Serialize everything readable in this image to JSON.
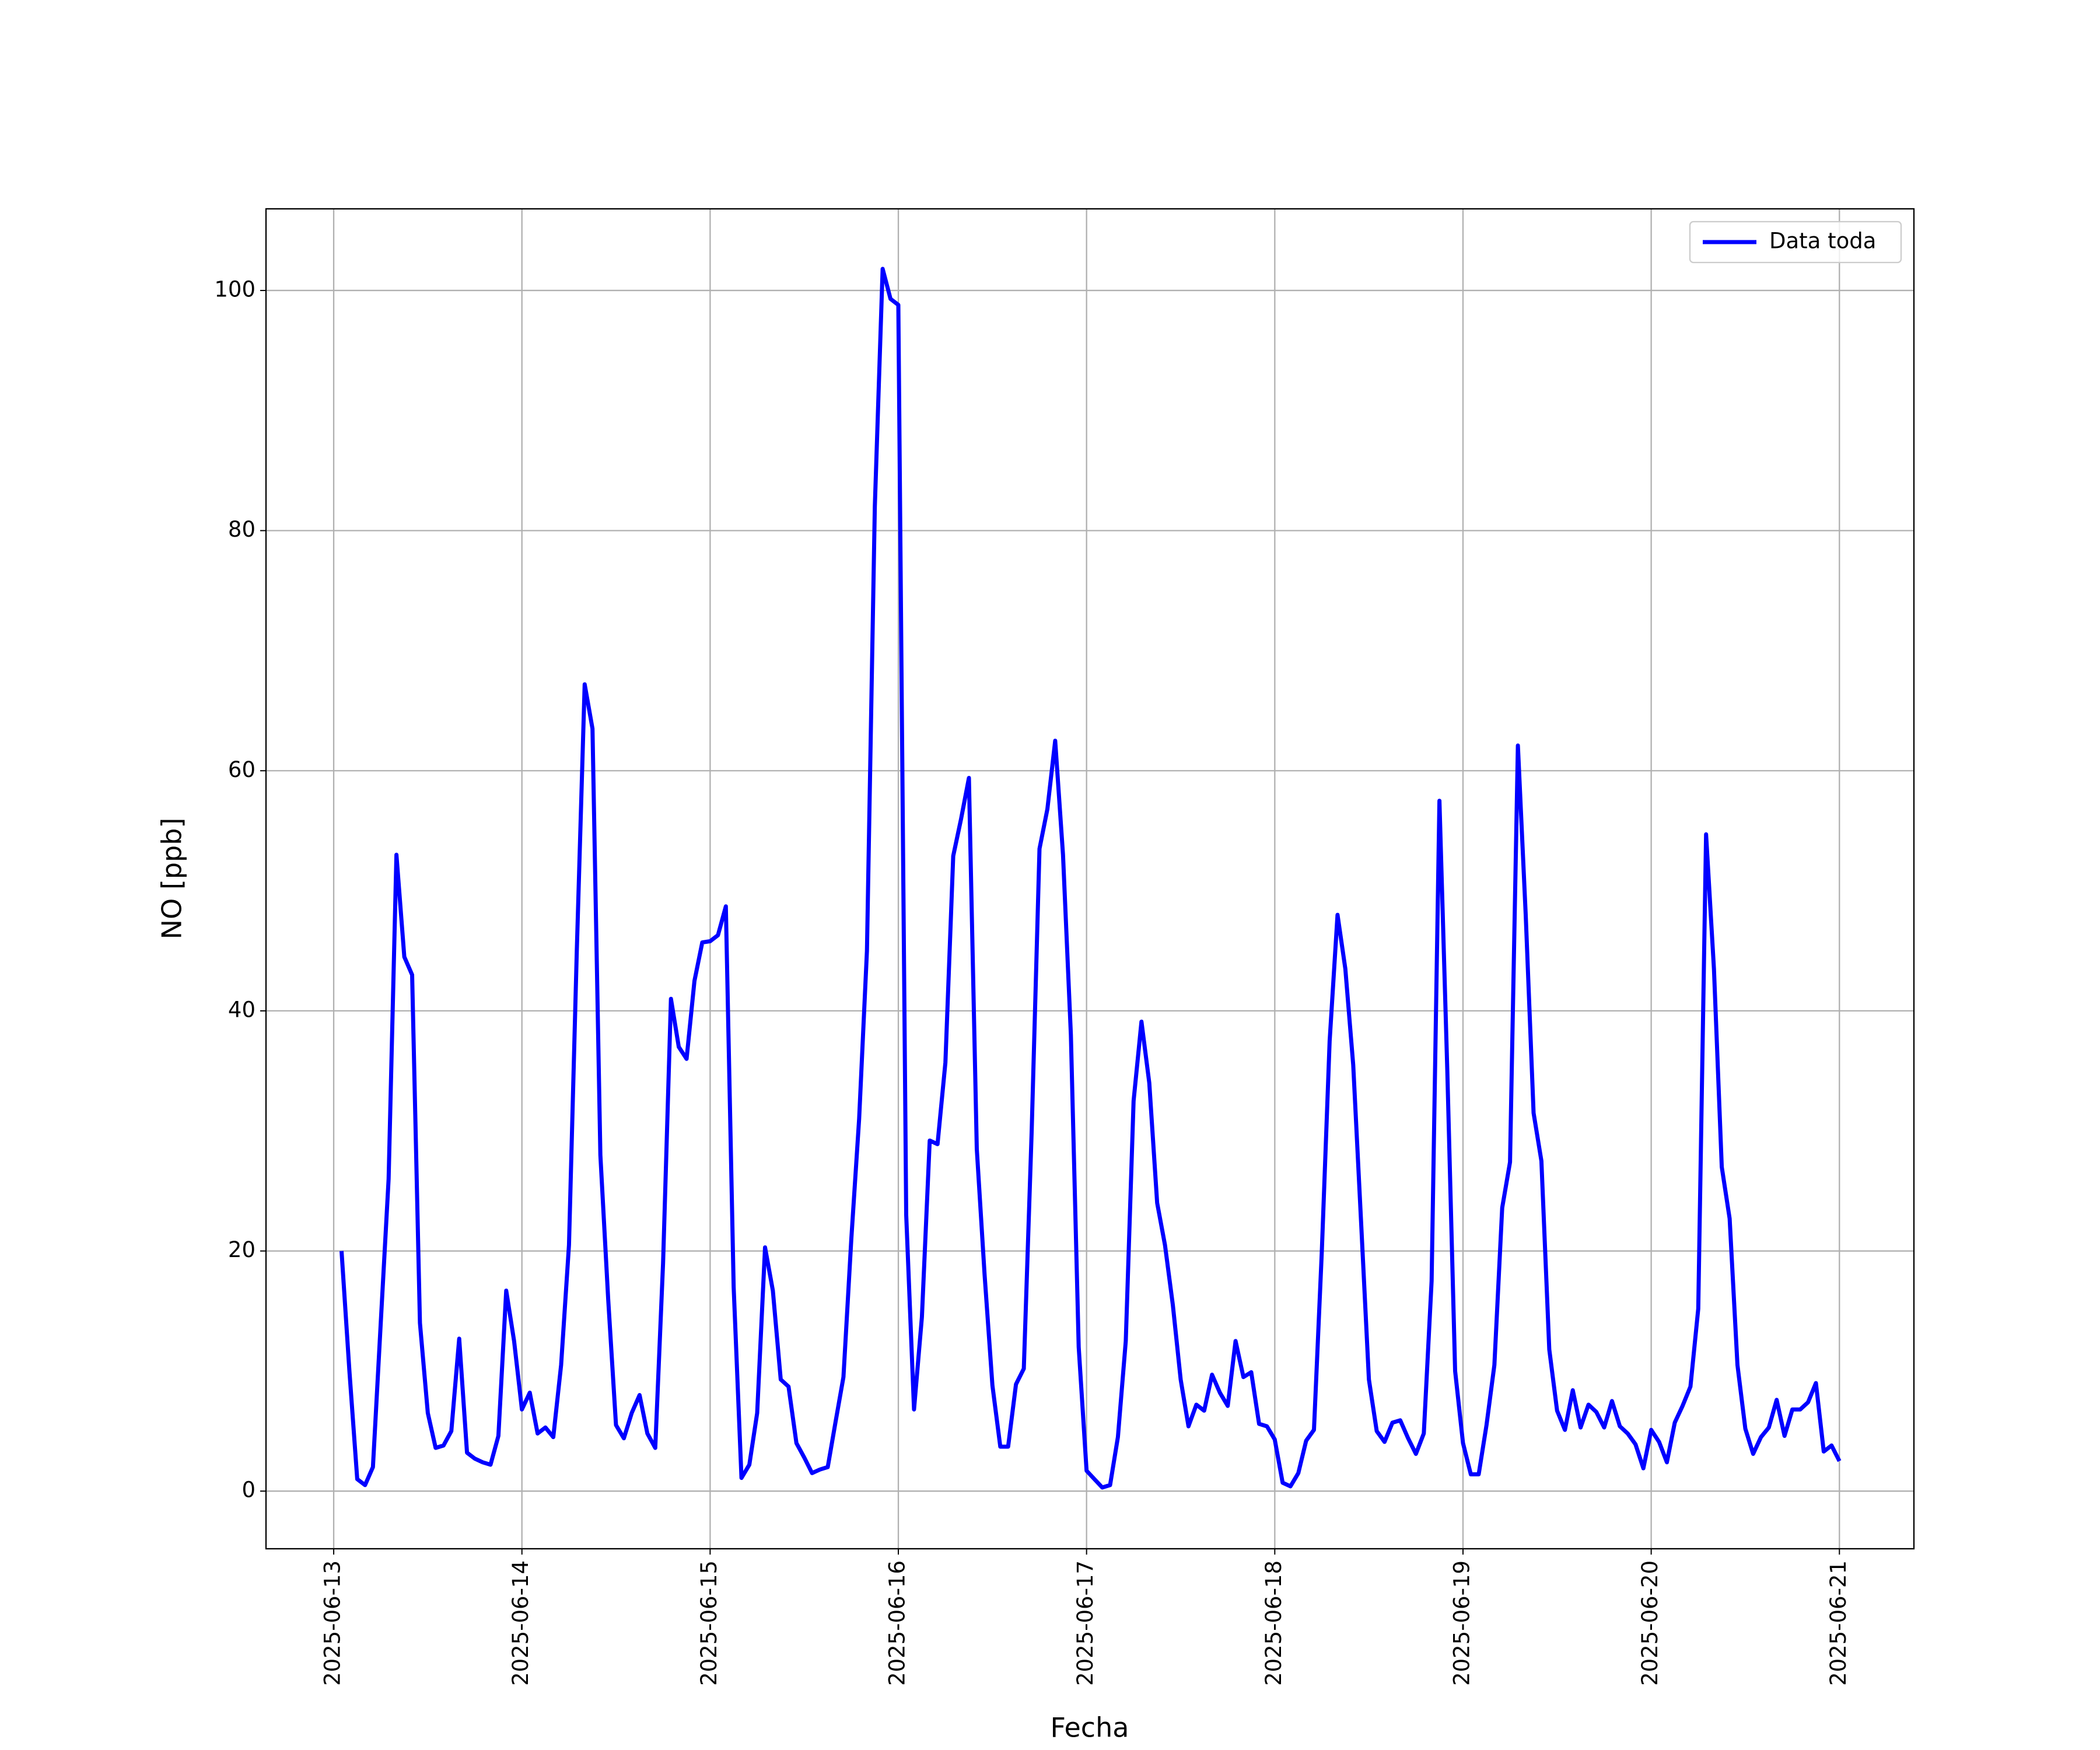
{
  "chart_data": {
    "type": "line",
    "xlabel": "Fecha",
    "ylabel": "NO [ppb]",
    "xlim": [
      "2025-06-12 15:22",
      "2025-06-21 09:30"
    ],
    "xticks": [
      "2025-06-13",
      "2025-06-14",
      "2025-06-15",
      "2025-06-16",
      "2025-06-17",
      "2025-06-18",
      "2025-06-19",
      "2025-06-20",
      "2025-06-21"
    ],
    "ylim": [
      -4.8,
      106.8
    ],
    "yticks": [
      0,
      20,
      40,
      60,
      80,
      100
    ],
    "grid": true,
    "legend": "upper right",
    "x": [
      "2025-06-13 01:00",
      "2025-06-13 02:00",
      "2025-06-13 03:00",
      "2025-06-13 04:00",
      "2025-06-13 05:00",
      "2025-06-13 06:00",
      "2025-06-13 07:00",
      "2025-06-13 08:00",
      "2025-06-13 09:00",
      "2025-06-13 10:00",
      "2025-06-13 11:00",
      "2025-06-13 12:00",
      "2025-06-13 13:00",
      "2025-06-13 14:00",
      "2025-06-13 15:00",
      "2025-06-13 16:00",
      "2025-06-13 17:00",
      "2025-06-13 18:00",
      "2025-06-13 19:00",
      "2025-06-13 20:00",
      "2025-06-13 21:00",
      "2025-06-13 22:00",
      "2025-06-13 23:00",
      "2025-06-14 00:00",
      "2025-06-14 01:00",
      "2025-06-14 02:00",
      "2025-06-14 03:00",
      "2025-06-14 04:00",
      "2025-06-14 05:00",
      "2025-06-14 06:00",
      "2025-06-14 07:00",
      "2025-06-14 08:00",
      "2025-06-14 09:00",
      "2025-06-14 10:00",
      "2025-06-14 11:00",
      "2025-06-14 12:00",
      "2025-06-14 13:00",
      "2025-06-14 14:00",
      "2025-06-14 15:00",
      "2025-06-14 16:00",
      "2025-06-14 17:00",
      "2025-06-14 18:00",
      "2025-06-14 19:00",
      "2025-06-14 20:00",
      "2025-06-14 21:00",
      "2025-06-14 22:00",
      "2025-06-14 23:00",
      "2025-06-15 00:00",
      "2025-06-15 01:00",
      "2025-06-15 02:00",
      "2025-06-15 03:00",
      "2025-06-15 04:00",
      "2025-06-15 05:00",
      "2025-06-15 06:00",
      "2025-06-15 07:00",
      "2025-06-15 08:00",
      "2025-06-15 09:00",
      "2025-06-15 10:00",
      "2025-06-15 11:00",
      "2025-06-15 12:00",
      "2025-06-15 13:00",
      "2025-06-15 14:00",
      "2025-06-15 15:00",
      "2025-06-15 16:00",
      "2025-06-15 17:00",
      "2025-06-15 18:00",
      "2025-06-15 19:00",
      "2025-06-15 20:00",
      "2025-06-15 21:00",
      "2025-06-15 22:00",
      "2025-06-15 23:00",
      "2025-06-16 00:00",
      "2025-06-16 01:00",
      "2025-06-16 02:00",
      "2025-06-16 03:00",
      "2025-06-16 04:00",
      "2025-06-16 05:00",
      "2025-06-16 06:00",
      "2025-06-16 07:00",
      "2025-06-16 08:00",
      "2025-06-16 09:00",
      "2025-06-16 10:00",
      "2025-06-16 11:00",
      "2025-06-16 12:00",
      "2025-06-16 13:00",
      "2025-06-16 14:00",
      "2025-06-16 15:00",
      "2025-06-16 16:00",
      "2025-06-16 17:00",
      "2025-06-16 18:00",
      "2025-06-16 19:00",
      "2025-06-16 20:00",
      "2025-06-16 21:00",
      "2025-06-16 22:00",
      "2025-06-16 23:00",
      "2025-06-17 00:00",
      "2025-06-17 01:00",
      "2025-06-17 02:00",
      "2025-06-17 03:00",
      "2025-06-17 04:00",
      "2025-06-17 05:00",
      "2025-06-17 06:00",
      "2025-06-17 07:00",
      "2025-06-17 08:00",
      "2025-06-17 09:00",
      "2025-06-17 10:00",
      "2025-06-17 11:00",
      "2025-06-17 12:00",
      "2025-06-17 13:00",
      "2025-06-17 14:00",
      "2025-06-17 15:00",
      "2025-06-17 16:00",
      "2025-06-17 17:00",
      "2025-06-17 18:00",
      "2025-06-17 19:00",
      "2025-06-17 20:00",
      "2025-06-17 21:00",
      "2025-06-17 22:00",
      "2025-06-17 23:00",
      "2025-06-18 00:00",
      "2025-06-18 01:00",
      "2025-06-18 02:00",
      "2025-06-18 03:00",
      "2025-06-18 04:00",
      "2025-06-18 05:00",
      "2025-06-18 06:00",
      "2025-06-18 07:00",
      "2025-06-18 08:00",
      "2025-06-18 09:00",
      "2025-06-18 10:00",
      "2025-06-18 11:00",
      "2025-06-18 12:00",
      "2025-06-18 13:00",
      "2025-06-18 14:00",
      "2025-06-18 15:00",
      "2025-06-18 16:00",
      "2025-06-18 17:00",
      "2025-06-18 18:00",
      "2025-06-18 19:00",
      "2025-06-18 20:00",
      "2025-06-18 21:00",
      "2025-06-18 22:00",
      "2025-06-18 23:00",
      "2025-06-19 00:00",
      "2025-06-19 01:00",
      "2025-06-19 02:00",
      "2025-06-19 03:00",
      "2025-06-19 04:00",
      "2025-06-19 05:00",
      "2025-06-19 06:00",
      "2025-06-19 07:00",
      "2025-06-19 08:00",
      "2025-06-19 09:00",
      "2025-06-19 10:00",
      "2025-06-19 11:00",
      "2025-06-19 12:00",
      "2025-06-19 13:00",
      "2025-06-19 14:00",
      "2025-06-19 15:00",
      "2025-06-19 16:00",
      "2025-06-19 17:00",
      "2025-06-19 18:00",
      "2025-06-19 19:00",
      "2025-06-19 20:00",
      "2025-06-19 21:00",
      "2025-06-19 22:00",
      "2025-06-19 23:00",
      "2025-06-20 00:00",
      "2025-06-20 01:00",
      "2025-06-20 02:00",
      "2025-06-20 03:00",
      "2025-06-20 04:00",
      "2025-06-20 05:00",
      "2025-06-20 06:00",
      "2025-06-20 07:00",
      "2025-06-20 08:00",
      "2025-06-20 09:00",
      "2025-06-20 10:00",
      "2025-06-20 11:00",
      "2025-06-20 12:00",
      "2025-06-20 13:00",
      "2025-06-20 14:00",
      "2025-06-20 15:00",
      "2025-06-20 16:00",
      "2025-06-20 17:00",
      "2025-06-20 18:00",
      "2025-06-20 19:00",
      "2025-06-20 20:00",
      "2025-06-20 21:00",
      "2025-06-20 22:00",
      "2025-06-20 23:00",
      "2025-06-21 00:00"
    ],
    "series": [
      {
        "name": "Data toda",
        "color": "#0000ff",
        "values": [
          20,
          10,
          1,
          0.5,
          2,
          14,
          26,
          53,
          44.5,
          43,
          14,
          6.5,
          3.6,
          3.8,
          5,
          12.7,
          3.2,
          2.7,
          2.4,
          2.2,
          4.6,
          16.7,
          12.5,
          6.8,
          8.2,
          4.8,
          5.3,
          4.5,
          10.5,
          20.5,
          45,
          67.2,
          63.5,
          28,
          16,
          5.5,
          4.4,
          6.5,
          8,
          4.8,
          3.6,
          19,
          41,
          37,
          36,
          42.5,
          45.7,
          45.8,
          46.3,
          48.7,
          17,
          1.1,
          2.2,
          6.5,
          20.3,
          16.7,
          9.3,
          8.7,
          4,
          2.8,
          1.5,
          1.8,
          2,
          5.8,
          9.5,
          21,
          31,
          45,
          82,
          101.8,
          99.3,
          98.8,
          23,
          6.8,
          14.5,
          29.2,
          28.9,
          35.7,
          52.9,
          56,
          59.4,
          28.5,
          18,
          8.8,
          3.7,
          3.7,
          8.9,
          10.2,
          30,
          53.5,
          56.8,
          62.5,
          53,
          38,
          12,
          1.7,
          1,
          0.3,
          0.5,
          4.5,
          12.5,
          32.5,
          39.1,
          34,
          24,
          20.5,
          15.5,
          9.3,
          5.4,
          7.2,
          6.7,
          9.7,
          8.2,
          7.1,
          12.5,
          9.5,
          9.9,
          5.6,
          5.4,
          4.3,
          0.7,
          0.4,
          1.5,
          4.2,
          5.1,
          20,
          37.5,
          48,
          43.5,
          35.5,
          22.5,
          9.3,
          5,
          4.1,
          5.7,
          5.9,
          4.4,
          3.1,
          4.8,
          17.5,
          57.5,
          35,
          10,
          4,
          1.4,
          1.4,
          5.5,
          10.5,
          23.6,
          27.4,
          62.1,
          48,
          31.5,
          27.5,
          11.8,
          6.7,
          5.1,
          8.4,
          5.3,
          7.2,
          6.6,
          5.3,
          7.5,
          5.4,
          4.8,
          3.9,
          1.9,
          5.1,
          4.1,
          2.4,
          5.7,
          7.1,
          8.7,
          15.2,
          54.7,
          43.5,
          27,
          22.7,
          10.5,
          5.2,
          3.1,
          4.5,
          5.3,
          7.6,
          4.6,
          6.8,
          6.8,
          7.4,
          9,
          3.3,
          3.8,
          2.5
        ]
      }
    ]
  }
}
